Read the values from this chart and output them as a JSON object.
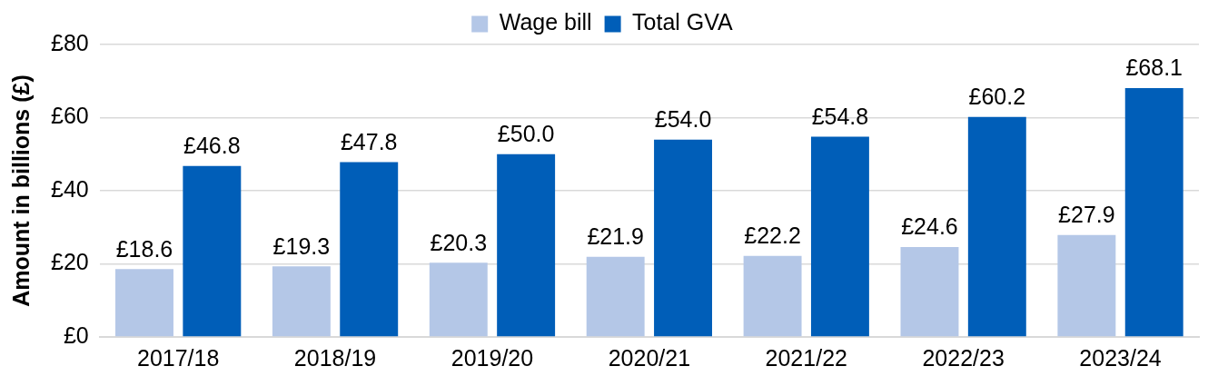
{
  "chart_data": {
    "type": "bar",
    "ylabel": "Amount in billions (£)",
    "categories": [
      "2017/18",
      "2018/19",
      "2019/20",
      "2020/21",
      "2021/22",
      "2022/23",
      "2023/24"
    ],
    "series": [
      {
        "name": "Wage bill",
        "color": "#b4c7e7",
        "values": [
          18.6,
          19.3,
          20.3,
          21.9,
          22.2,
          24.6,
          27.9
        ],
        "value_labels": [
          "£18.6",
          "£19.3",
          "£20.3",
          "£21.9",
          "£22.2",
          "£24.6",
          "£27.9"
        ]
      },
      {
        "name": "Total GVA",
        "color": "#005eb8",
        "values": [
          46.8,
          47.8,
          50.0,
          54.0,
          54.8,
          60.2,
          68.1
        ],
        "value_labels": [
          "£46.8",
          "£47.8",
          "£50.0",
          "£54.0",
          "£54.8",
          "£60.2",
          "£68.1"
        ]
      }
    ],
    "ylim": [
      0,
      80
    ],
    "yticks": [
      {
        "value": 0,
        "label": "£0"
      },
      {
        "value": 20,
        "label": "£20"
      },
      {
        "value": 40,
        "label": "£40"
      },
      {
        "value": 60,
        "label": "£60"
      },
      {
        "value": 80,
        "label": "£80"
      }
    ],
    "grid": "y",
    "legend": "top"
  }
}
